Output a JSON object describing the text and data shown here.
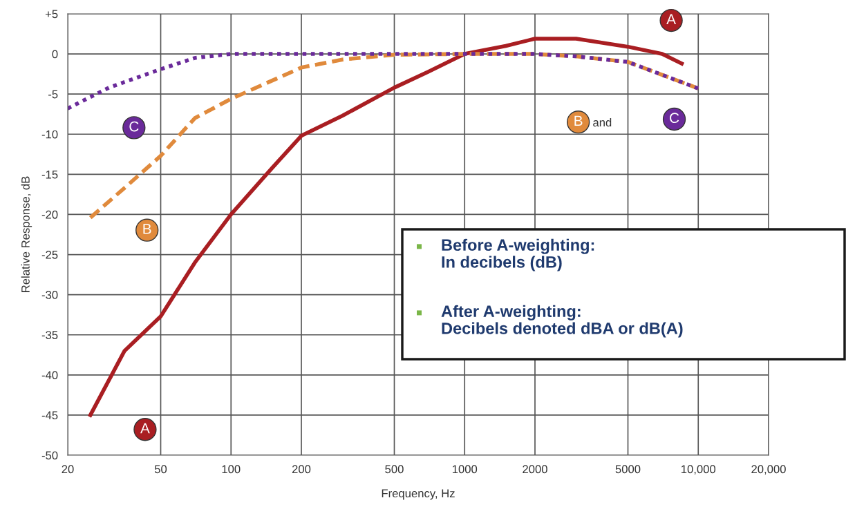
{
  "chart_data": {
    "type": "line",
    "xlabel": "Frequency, Hz",
    "ylabel": "Relative Response, dB",
    "xlim": [
      20,
      20000
    ],
    "xticks": [
      20,
      50,
      100,
      200,
      500,
      1000,
      2000,
      5000,
      {
        "value": 10000,
        "label": "10,000"
      },
      {
        "value": 20000,
        "label": "20,000"
      }
    ],
    "ylim": [
      -50,
      5
    ],
    "yticks": [
      -50,
      -45,
      -40,
      -35,
      -30,
      -25,
      -20,
      -15,
      -10,
      -5,
      0,
      {
        "value": 5,
        "label": "+5"
      }
    ],
    "grid": true,
    "marker": "none",
    "log": "x",
    "series": [
      {
        "name": "A",
        "color": "#a91e22",
        "line_style": "solid",
        "x": [
          25,
          35,
          50,
          70,
          100,
          150,
          200,
          300,
          500,
          700,
          1000,
          1500,
          2000,
          3000,
          5000,
          7000,
          8500
        ],
        "values": [
          -45,
          -37,
          -32.7,
          -26,
          -20,
          -14.2,
          -10.2,
          -7.7,
          -4.2,
          -2.2,
          0,
          1,
          1.9,
          1.9,
          0.9,
          0,
          -1.2
        ]
      },
      {
        "name": "B",
        "color": "#e08a3c",
        "line_style": "dashed",
        "x": [
          25,
          35,
          50,
          70,
          100,
          200,
          300,
          500,
          1000,
          2000,
          3000,
          5000,
          7000,
          10000
        ],
        "values": [
          -20.4,
          -16.7,
          -12.7,
          -8,
          -5.6,
          -1.7,
          -0.7,
          -0.1,
          0,
          0,
          -0.3,
          -1,
          -2.6,
          -4.3
        ]
      },
      {
        "name": "C",
        "color": "#6a2a9a",
        "line_style": "dotted",
        "x": [
          20,
          30,
          50,
          70,
          100,
          500,
          1000,
          2000,
          3000,
          5000,
          7000,
          10000
        ],
        "values": [
          -6.8,
          -4.2,
          -1.9,
          -0.5,
          0,
          0,
          0,
          0,
          -0.3,
          -1,
          -2.6,
          -4.3
        ]
      }
    ],
    "annotations": [
      "and",
      "Before A-weighting:\nIn decibels (dB)",
      "After A-weighting:\nDecibels denoted dBA or dB(A)"
    ]
  }
}
